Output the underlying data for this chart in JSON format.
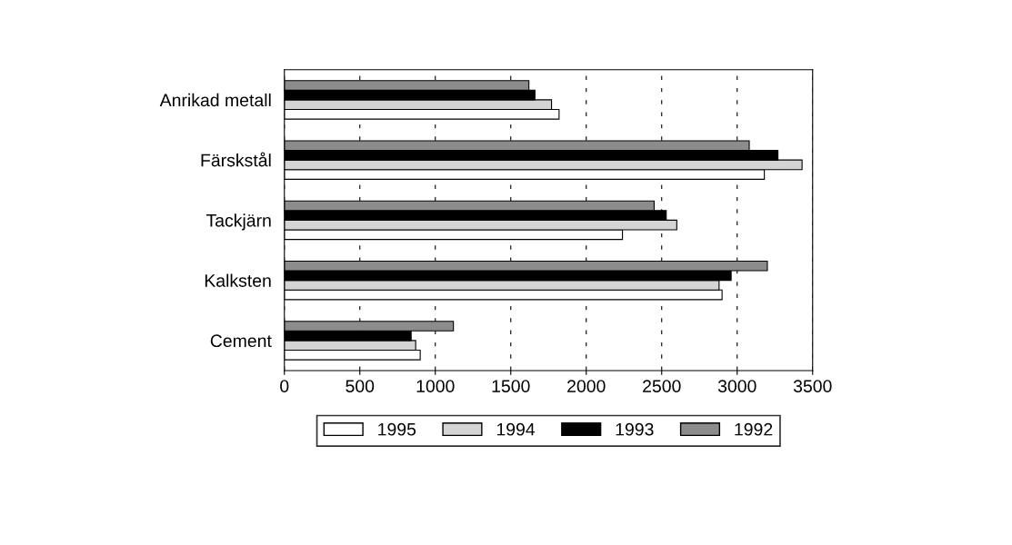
{
  "chart_data": {
    "type": "bar",
    "orientation": "horizontal",
    "categories": [
      "Anrikad metall",
      "Färskstål",
      "Tackjärn",
      "Kalksten",
      "Cement"
    ],
    "series": [
      {
        "name": "1995",
        "color": "#ffffff",
        "values": [
          1820,
          3180,
          2240,
          2900,
          900
        ]
      },
      {
        "name": "1994",
        "color": "#d4d4d4",
        "values": [
          1770,
          3430,
          2600,
          2880,
          870
        ]
      },
      {
        "name": "1993",
        "color": "#000000",
        "values": [
          1660,
          3270,
          2530,
          2960,
          840
        ]
      },
      {
        "name": "1992",
        "color": "#8c8c8c",
        "values": [
          1620,
          3080,
          2450,
          3200,
          1120
        ]
      }
    ],
    "xlim": [
      0,
      3500
    ],
    "xticks": [
      0,
      500,
      1000,
      1500,
      2000,
      2500,
      3000,
      3500
    ],
    "grid": "x",
    "legend": "bottom"
  }
}
